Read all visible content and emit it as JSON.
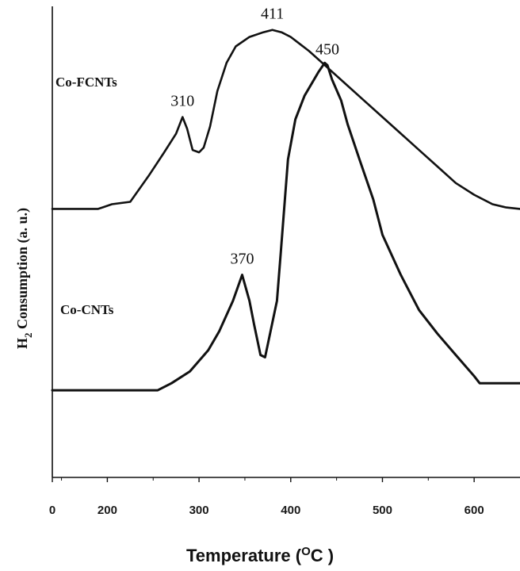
{
  "chart_data": {
    "type": "line",
    "xlabel": "Temperature (",
    "xlabel_sup": "O",
    "xlabel_unit": "C )",
    "ylabel_main": "H",
    "ylabel_sub": "2",
    "ylabel_rest": " Consumption (a. u.)",
    "x_ticks": [
      "0",
      "200",
      "300",
      "400",
      "500",
      "600"
    ],
    "x_tick_values": [
      140,
      200,
      300,
      400,
      500,
      600
    ],
    "xlim": [
      140,
      650
    ],
    "ylim": [
      0,
      100
    ],
    "grid": false,
    "series": [
      {
        "name": "Co-FCNTs",
        "x": [
          140,
          190,
          205,
          225,
          245,
          262,
          275,
          282,
          287,
          293,
          300,
          305,
          312,
          320,
          330,
          340,
          355,
          370,
          380,
          390,
          400,
          420,
          440,
          460,
          480,
          500,
          520,
          540,
          560,
          580,
          600,
          620,
          635,
          650
        ],
        "y": [
          57,
          57,
          58,
          58.5,
          64,
          69,
          73,
          76.5,
          74,
          69.5,
          69,
          70,
          74.5,
          82,
          88,
          91.5,
          93.5,
          94.5,
          95,
          94.5,
          93.5,
          90.5,
          87,
          83.5,
          80,
          76.5,
          73,
          69.5,
          66,
          62.5,
          60,
          58,
          57.3,
          57
        ]
      },
      {
        "name": "Co-CNTs",
        "x": [
          140,
          190,
          255,
          270,
          290,
          310,
          322,
          337,
          347,
          355,
          360,
          367,
          372,
          385,
          389,
          393,
          397,
          405,
          415,
          430,
          437,
          440,
          445,
          455,
          462,
          475,
          490,
          500,
          520,
          540,
          560,
          580,
          600,
          606,
          650
        ],
        "y": [
          18.5,
          18.5,
          18.5,
          20,
          22.5,
          27,
          31,
          37.5,
          43,
          37.5,
          32.5,
          26,
          25.5,
          37.5,
          47.5,
          57.5,
          67.5,
          76,
          81,
          86,
          88,
          87.5,
          84.5,
          80,
          75,
          67.5,
          59,
          51.5,
          43,
          35.5,
          30.5,
          26,
          21.5,
          20,
          20
        ]
      }
    ],
    "annotations": [
      {
        "text": "411",
        "series": 0,
        "x": 380
      },
      {
        "text": "310",
        "series": 0,
        "x": 282
      },
      {
        "text": "450",
        "series": 1,
        "x": 440
      },
      {
        "text": "370",
        "series": 1,
        "x": 347
      }
    ]
  }
}
